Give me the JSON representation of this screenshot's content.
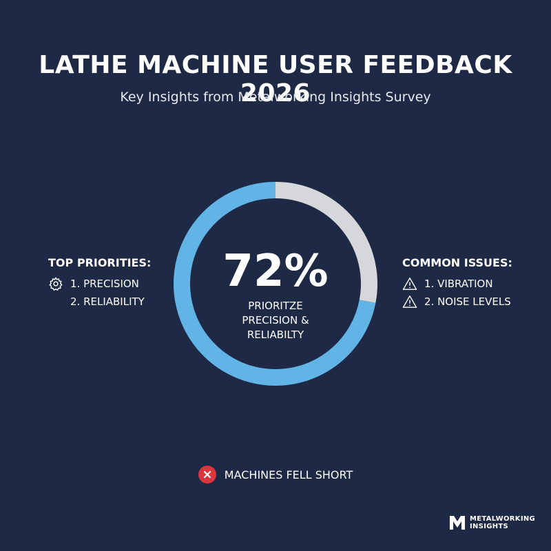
{
  "header": {
    "title": "LATHE MACHINE USER FEEDBACK 2026",
    "subtitle": "Key Insights from Metalworking Insights Survey"
  },
  "chart_data": {
    "type": "pie",
    "title": "LATHE MACHINE USER FEEDBACK 2026",
    "subtitle": "Key Insights from Metalworking Insights Survey",
    "categories": [
      "Prioritize precision & reliability",
      "Other"
    ],
    "values": [
      72,
      28
    ],
    "colors": [
      "#63b4e6",
      "#d5d7da"
    ],
    "center_label": "72%",
    "center_caption": "PRIORITZE PRECISION & RELIABILTY"
  },
  "top_priorities": {
    "heading": "TOP PRIORITIES:",
    "icon": "gear-icon",
    "items": [
      "1. PRECISION",
      "2. RELIABILITY"
    ]
  },
  "common_issues": {
    "heading": "COMMON ISSUES:",
    "icon": "warning-icon",
    "items": [
      "1. VIBRATION",
      "2. NOISE LEVELS"
    ]
  },
  "note": {
    "icon": "close-icon",
    "text": "MACHINES FELL SHORT",
    "color": "#d9363e"
  },
  "brand": {
    "line1": "METALWORKING",
    "line2": "INSIGHTS"
  },
  "colors": {
    "background": "#1e2a45",
    "accent": "#63b4e6",
    "track": "#d5d7da"
  }
}
